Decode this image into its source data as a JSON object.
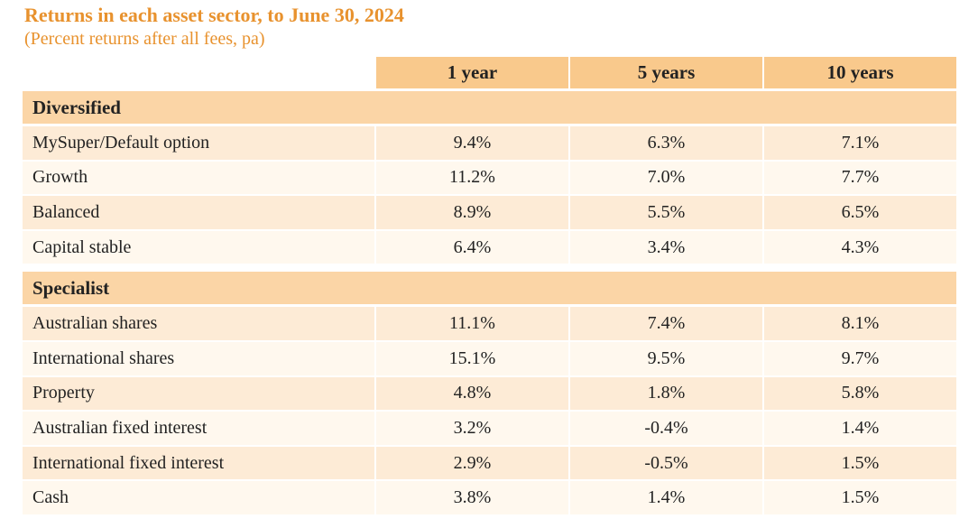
{
  "header": {
    "title": "Returns in each asset sector, to June 30, 2024",
    "subtitle": "(Percent returns after all fees, pa)"
  },
  "table": {
    "columns": [
      "1 year",
      "5 years",
      "10 years"
    ],
    "sections": [
      {
        "name": "Diversified",
        "rows": [
          [
            "MySuper/Default option",
            "9.4%",
            "6.3%",
            "7.1%"
          ],
          [
            "Growth",
            "11.2%",
            "7.0%",
            "7.7%"
          ],
          [
            "Balanced",
            "8.9%",
            "5.5%",
            "6.5%"
          ],
          [
            "Capital stable",
            "6.4%",
            "3.4%",
            "4.3%"
          ]
        ]
      },
      {
        "name": "Specialist",
        "rows": [
          [
            "Australian shares",
            "11.1%",
            "7.4%",
            "8.1%"
          ],
          [
            "International shares",
            "15.1%",
            "9.5%",
            "9.7%"
          ],
          [
            "Property",
            "4.8%",
            "1.8%",
            "5.8%"
          ],
          [
            "Australian fixed interest",
            "3.2%",
            "-0.4%",
            "1.4%"
          ],
          [
            "International fixed interest",
            "2.9%",
            "-0.5%",
            "1.5%"
          ],
          [
            "Cash",
            "3.8%",
            "1.4%",
            "1.5%"
          ]
        ]
      }
    ]
  }
}
